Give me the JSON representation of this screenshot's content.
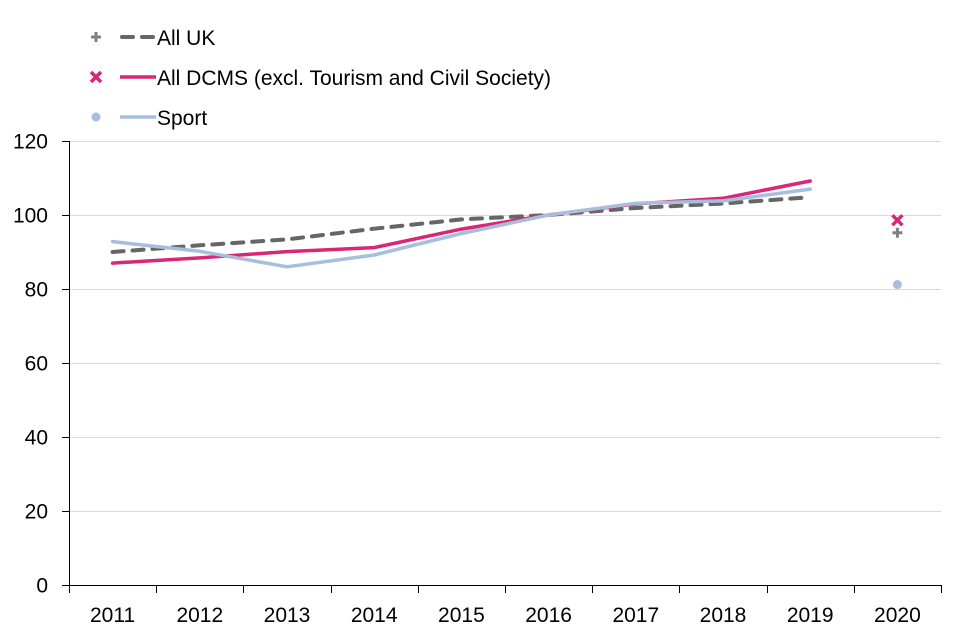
{
  "chart_data": {
    "type": "line",
    "title": "",
    "xlabel": "",
    "ylabel": "",
    "categories": [
      "2011",
      "2012",
      "2013",
      "2014",
      "2015",
      "2016",
      "2017",
      "2018",
      "2019",
      "2020"
    ],
    "ylim": [
      0,
      120
    ],
    "yticks": [
      0,
      20,
      40,
      60,
      80,
      100,
      120
    ],
    "grid": "horizontal",
    "legend_position": "top-left",
    "series": [
      {
        "name": "All UK",
        "color": "#666666",
        "marker_color": "#808080",
        "line_style": "dashed",
        "marker": "plus",
        "values": [
          90.0,
          91.8,
          93.4,
          96.3,
          98.8,
          100.0,
          101.9,
          103.1,
          104.8,
          95.2
        ]
      },
      {
        "name": "All DCMS (excl. Tourism and Civil Society)",
        "color": "#DA2676",
        "marker_color": "#DA2676",
        "line_style": "solid",
        "marker": "cross",
        "values": [
          87.0,
          88.4,
          90.1,
          91.2,
          96.2,
          100.0,
          103.0,
          104.5,
          109.2,
          98.6
        ]
      },
      {
        "name": "Sport",
        "color": "#A7BEDD",
        "marker_color": "#A7BEDD",
        "line_style": "solid",
        "marker": "circle",
        "values": [
          92.8,
          90.2,
          86.0,
          89.2,
          95.0,
          100.0,
          103.2,
          103.8,
          107.0,
          81.2
        ]
      }
    ],
    "notes": "2011-2019 plotted as lines; 2020 plotted as isolated markers only"
  }
}
